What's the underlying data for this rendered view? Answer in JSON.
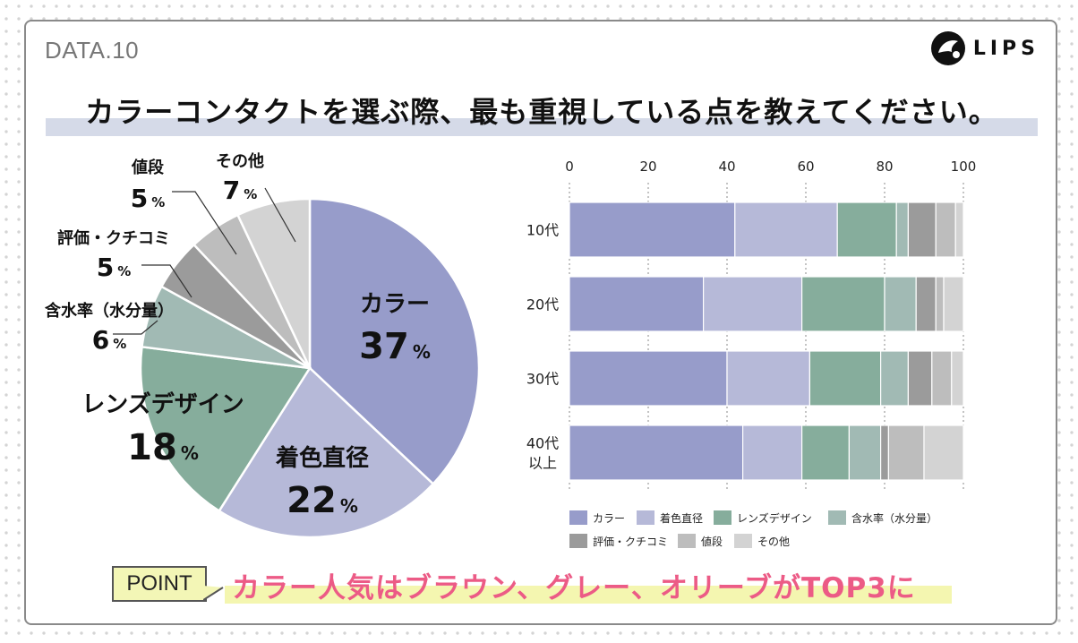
{
  "header": {
    "data_label": "DATA.10",
    "logo_text": "LIPS",
    "question": "カラーコンタクトを選ぶ際、最も重視している点を教えてください。"
  },
  "footer": {
    "point_label": "POINT",
    "point_text": "カラー人気はブラウン、グレー、オリーブがTOP3に"
  },
  "colors": {
    "color": "#979cca",
    "dye_diameter": "#b6b9d8",
    "lens_design": "#86ad9c",
    "water_content": "#a1bab4",
    "reviews": "#9b9b9b",
    "price": "#bdbdbd",
    "other": "#d3d3d3",
    "question_bar": "#d5dae8",
    "point_pink": "#ec5b86",
    "point_yellow": "#f4f6b0"
  },
  "chart_data": [
    {
      "type": "pie",
      "title": "",
      "unit": "%",
      "slices": [
        {
          "label": "カラー",
          "value": 37,
          "color": "#979cca"
        },
        {
          "label": "着色直径",
          "value": 22,
          "color": "#b6b9d8"
        },
        {
          "label": "レンズデザイン",
          "value": 18,
          "color": "#86ad9c"
        },
        {
          "label": "含水率（水分量）",
          "value": 6,
          "color": "#a1bab4"
        },
        {
          "label": "評価・クチコミ",
          "value": 5,
          "color": "#9b9b9b"
        },
        {
          "label": "値段",
          "value": 5,
          "color": "#bdbdbd"
        },
        {
          "label": "その他",
          "value": 7,
          "color": "#d3d3d3"
        }
      ]
    },
    {
      "type": "bar",
      "orientation": "horizontal",
      "stacked": true,
      "xlim": [
        0,
        100
      ],
      "xticks": [
        0,
        20,
        40,
        60,
        80,
        100
      ],
      "categories": [
        "10代",
        "20代",
        "30代",
        "40代\n以上"
      ],
      "legend_position": "bottom",
      "series": [
        {
          "name": "カラー",
          "color": "#979cca",
          "values": [
            42,
            34,
            40,
            44
          ]
        },
        {
          "name": "着色直径",
          "color": "#b6b9d8",
          "values": [
            26,
            25,
            21,
            15
          ]
        },
        {
          "name": "レンズデザイン",
          "color": "#86ad9c",
          "values": [
            15,
            21,
            18,
            12
          ]
        },
        {
          "name": "含水率（水分量）",
          "color": "#a1bab4",
          "values": [
            3,
            8,
            7,
            8
          ]
        },
        {
          "name": "評価・クチコミ",
          "color": "#9b9b9b",
          "values": [
            7,
            5,
            6,
            2
          ]
        },
        {
          "name": "値段",
          "color": "#bdbdbd",
          "values": [
            5,
            2,
            5,
            9
          ]
        },
        {
          "name": "その他",
          "color": "#d3d3d3",
          "values": [
            2,
            5,
            3,
            10
          ]
        }
      ]
    }
  ]
}
